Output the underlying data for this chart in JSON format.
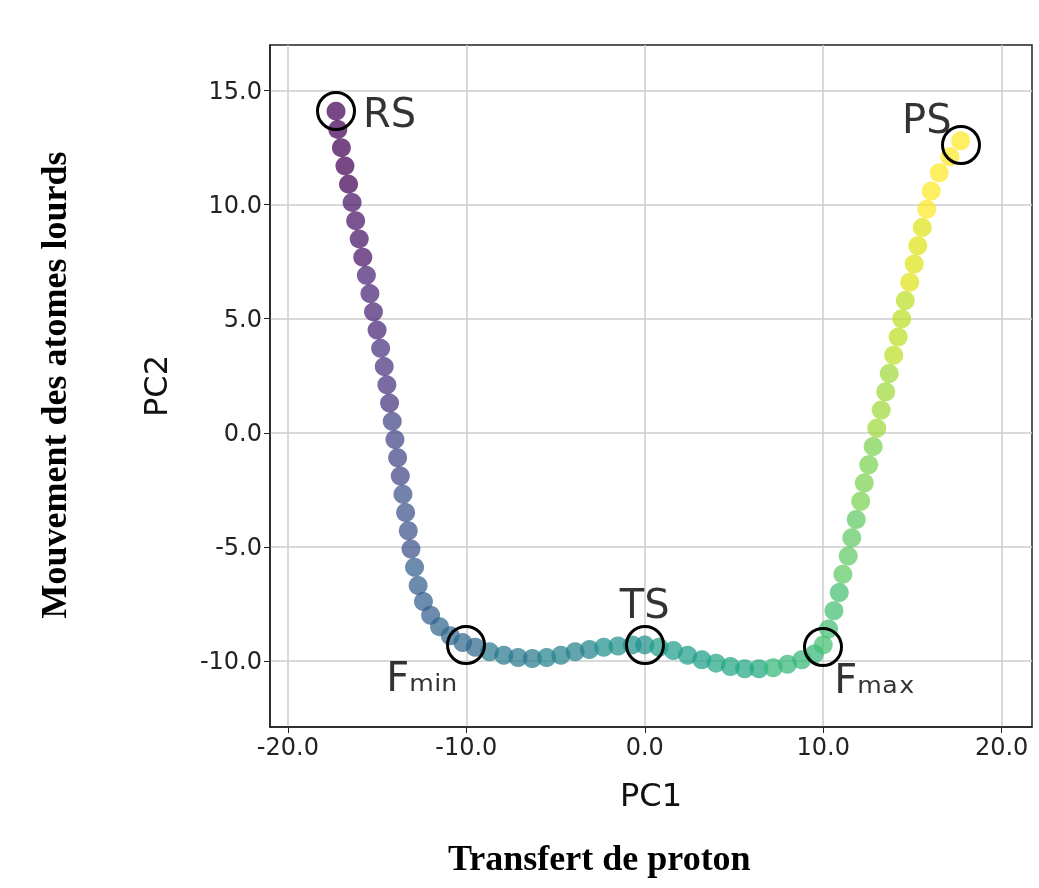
{
  "chart_data": {
    "type": "scatter",
    "xlabel": "PC1",
    "ylabel": "PC2",
    "xlim": [
      -21,
      21.7
    ],
    "ylim": [
      -12.9,
      17
    ],
    "xticks": [
      {
        "value": -20,
        "label": "-20.0"
      },
      {
        "value": -10,
        "label": "-10.0"
      },
      {
        "value": 0,
        "label": "0.0"
      },
      {
        "value": 10,
        "label": "10.0"
      },
      {
        "value": 20,
        "label": "20.0"
      }
    ],
    "yticks": [
      {
        "value": -10,
        "label": "-10.0"
      },
      {
        "value": -5,
        "label": "-5.0"
      },
      {
        "value": 0,
        "label": "0.0"
      },
      {
        "value": 5,
        "label": "5.0"
      },
      {
        "value": 10,
        "label": "10.0"
      },
      {
        "value": 15,
        "label": "15.0"
      }
    ],
    "grid": true,
    "marker": "circle",
    "x": [
      -17.3,
      -17.2,
      -17.0,
      -16.8,
      -16.6,
      -16.4,
      -16.2,
      -16.0,
      -15.8,
      -15.6,
      -15.4,
      -15.2,
      -15.0,
      -14.8,
      -14.6,
      -14.45,
      -14.3,
      -14.15,
      -14.0,
      -13.85,
      -13.7,
      -13.55,
      -13.4,
      -13.25,
      -13.1,
      -12.9,
      -12.7,
      -12.4,
      -12.0,
      -11.5,
      -10.9,
      -10.2,
      -9.5,
      -8.7,
      -7.9,
      -7.1,
      -6.3,
      -5.5,
      -4.7,
      -3.9,
      -3.1,
      -2.3,
      -1.5,
      -0.7,
      0,
      0.8,
      1.6,
      2.4,
      3.2,
      4.0,
      4.8,
      5.6,
      6.4,
      7.2,
      8.0,
      8.8,
      9.5,
      10.0,
      10.3,
      10.6,
      10.9,
      11.1,
      11.4,
      11.6,
      11.85,
      12.1,
      12.3,
      12.55,
      12.8,
      13.0,
      13.25,
      13.5,
      13.7,
      13.95,
      14.2,
      14.4,
      14.6,
      14.85,
      15.1,
      15.3,
      15.55,
      15.8,
      16.05,
      16.5,
      17.1,
      17.7
    ],
    "values": [
      14.1,
      13.3,
      12.5,
      11.7,
      10.9,
      10.1,
      9.3,
      8.5,
      7.7,
      6.9,
      6.1,
      5.3,
      4.5,
      3.7,
      2.9,
      2.1,
      1.3,
      0.5,
      -0.3,
      -1.1,
      -1.9,
      -2.7,
      -3.5,
      -4.3,
      -5.1,
      -5.9,
      -6.7,
      -7.4,
      -8.0,
      -8.5,
      -8.9,
      -9.2,
      -9.4,
      -9.6,
      -9.75,
      -9.85,
      -9.9,
      -9.85,
      -9.75,
      -9.6,
      -9.5,
      -9.4,
      -9.35,
      -9.3,
      -9.3,
      -9.4,
      -9.55,
      -9.75,
      -9.95,
      -10.1,
      -10.25,
      -10.35,
      -10.35,
      -10.3,
      -10.15,
      -9.95,
      -9.7,
      -9.3,
      -8.6,
      -7.8,
      -7.0,
      -6.2,
      -5.4,
      -4.6,
      -3.8,
      -3.0,
      -2.2,
      -1.4,
      -0.6,
      0.2,
      1.0,
      1.8,
      2.6,
      3.4,
      4.2,
      5.0,
      5.8,
      6.6,
      7.4,
      8.2,
      9.0,
      9.8,
      10.6,
      11.4,
      12.1,
      12.8
    ],
    "colors": [
      "#440154",
      "#440154",
      "#440154",
      "#440154",
      "#440154",
      "#471365",
      "#471365",
      "#471365",
      "#471365",
      "#482475",
      "#482475",
      "#482475",
      "#482475",
      "#46337e",
      "#46337e",
      "#46337e",
      "#46337e",
      "#414487",
      "#414487",
      "#414487",
      "#414487",
      "#3b528b",
      "#3b528b",
      "#3b528b",
      "#3b528b",
      "#355f8d",
      "#355f8d",
      "#355f8d",
      "#355f8d",
      "#31688e",
      "#31688e",
      "#31688e",
      "#31688e",
      "#2a788e",
      "#2a788e",
      "#2a788e",
      "#2a788e",
      "#26828e",
      "#26828e",
      "#26828e",
      "#26828e",
      "#21918c",
      "#21918c",
      "#21918c",
      "#21918c",
      "#1f9e89",
      "#1f9e89",
      "#1f9e89",
      "#1f9e89",
      "#22a884",
      "#22a884",
      "#22a884",
      "#22a884",
      "#35b779",
      "#35b779",
      "#35b779",
      "#35b779",
      "#44bf70",
      "#44bf70",
      "#44bf70",
      "#44bf70",
      "#5ec962",
      "#5ec962",
      "#5ec962",
      "#5ec962",
      "#7ad151",
      "#7ad151",
      "#7ad151",
      "#7ad151",
      "#9fda3a",
      "#9fda3a",
      "#9fda3a",
      "#9fda3a",
      "#bddf26",
      "#bddf26",
      "#bddf26",
      "#bddf26",
      "#dfe318",
      "#dfe318",
      "#dfe318",
      "#dfe318",
      "#fde725",
      "#fde725",
      "#fde725",
      "#fde725",
      "#fde725"
    ],
    "annotations": [
      {
        "text": "RS",
        "x": -17.3,
        "y": 14.1
      },
      {
        "text": "Fₘᵢₙ",
        "x": -10.0,
        "y": -9.3
      },
      {
        "text": "TS",
        "x": 0,
        "y": -9.3
      },
      {
        "text": "Fₘₐₓ",
        "x": 10.0,
        "y": -9.4
      },
      {
        "text": "PS",
        "x": 17.7,
        "y": 12.6
      },
      "Mouvement des atomes lourds",
      "Transfert de proton"
    ]
  }
}
